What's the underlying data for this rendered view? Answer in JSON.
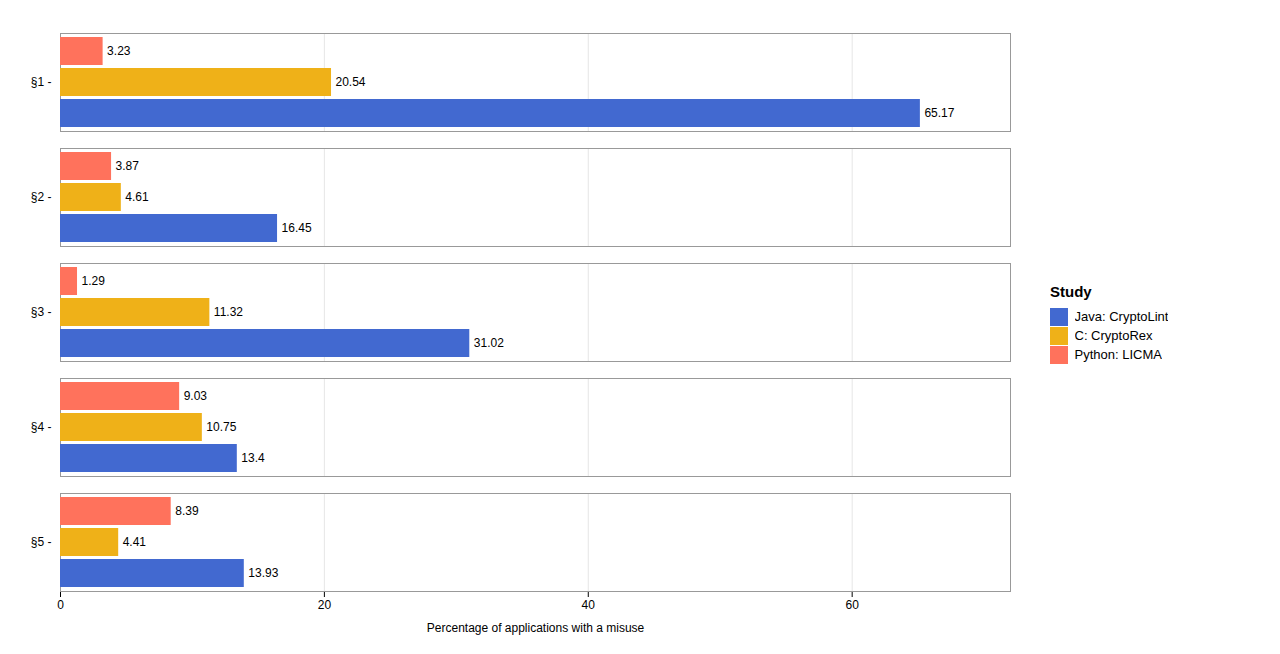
{
  "chart_data": {
    "type": "bar",
    "orientation": "horizontal",
    "categories": [
      "§1 -",
      "§2 -",
      "§3 -",
      "§4 -",
      "§5 -"
    ],
    "series": [
      {
        "name": "Java: CryptoLint",
        "values": [
          65.17,
          16.45,
          31.02,
          13.4,
          13.93
        ]
      },
      {
        "name": "C: CryptoRex",
        "values": [
          20.54,
          4.61,
          11.32,
          10.75,
          4.41
        ]
      },
      {
        "name": "Python: LICMA",
        "values": [
          3.23,
          3.87,
          1.29,
          9.03,
          8.39
        ]
      }
    ],
    "xlabel": "Percentage of applications with a misuse",
    "xlim": [
      0,
      72
    ],
    "xticks": [
      0,
      20,
      40,
      60
    ],
    "grid": true,
    "data_labels": true,
    "legend": "right",
    "legend_title": "Study"
  }
}
